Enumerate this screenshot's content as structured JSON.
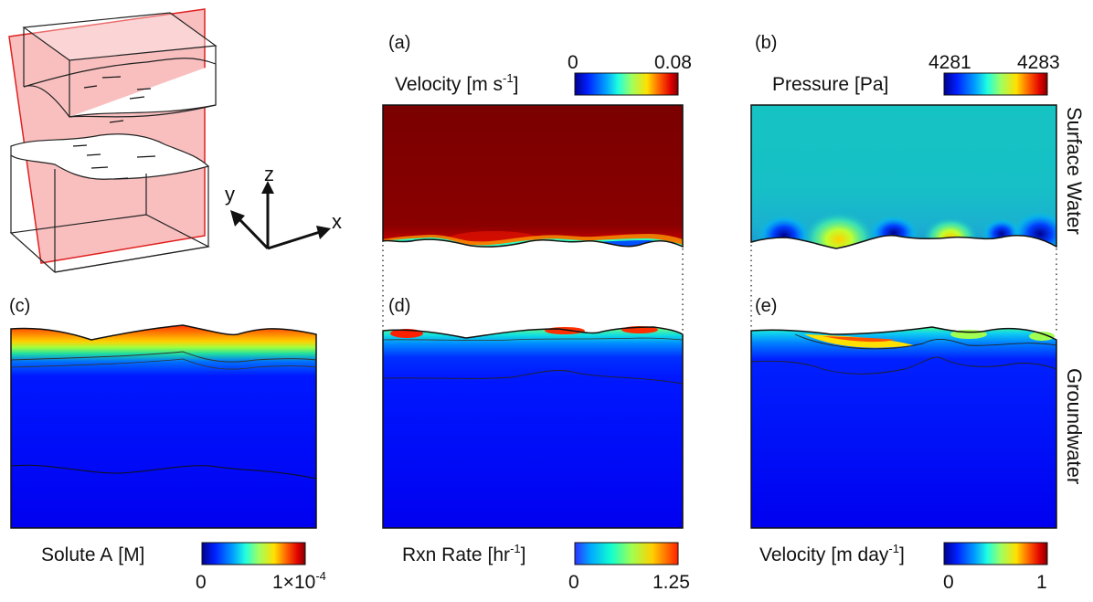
{
  "figure": {
    "schematic": {
      "axes": {
        "x": "x",
        "y": "y",
        "z": "z"
      }
    },
    "side_labels": {
      "surface": "Surface Water",
      "ground": "Groundwater"
    },
    "panels": [
      {
        "id": "a",
        "tag": "(a)",
        "quantity": "Velocity",
        "unit_main": "[m s",
        "unit_sup": "-1",
        "unit_close": "]",
        "cbar_min": "0",
        "cbar_max": "0.08",
        "domain": "surface water",
        "colormap": "jet"
      },
      {
        "id": "b",
        "tag": "(b)",
        "quantity": "Pressure",
        "unit_main": "[Pa]",
        "unit_sup": "",
        "unit_close": "",
        "cbar_min": "4281",
        "cbar_max": "4283",
        "domain": "surface water",
        "colormap": "jet"
      },
      {
        "id": "c",
        "tag": "(c)",
        "quantity": "Solute A",
        "unit_main": "[M]",
        "unit_sup": "",
        "unit_close": "",
        "cbar_min": "0",
        "cbar_max_main": "1×10",
        "cbar_max_sup": "-4",
        "domain": "groundwater",
        "colormap": "jet"
      },
      {
        "id": "d",
        "tag": "(d)",
        "quantity": "Rxn Rate",
        "unit_main": "[hr",
        "unit_sup": "-1",
        "unit_close": "]",
        "cbar_min": "0",
        "cbar_max": "1.25",
        "domain": "groundwater",
        "colormap": "jet"
      },
      {
        "id": "e",
        "tag": "(e)",
        "quantity": "Velocity",
        "unit_main": "[m day",
        "unit_sup": "-1",
        "unit_close": "]",
        "cbar_min": "0",
        "cbar_max": "1",
        "domain": "groundwater",
        "colormap": "jet"
      }
    ],
    "colors": {
      "section_plane": "#f4a3a3",
      "section_plane_edge": "#e02020",
      "jet": [
        "#00008f",
        "#0020ff",
        "#00a0ff",
        "#20ffdf",
        "#9fff60",
        "#ffe000",
        "#ff6000",
        "#df0000",
        "#800000"
      ]
    }
  }
}
